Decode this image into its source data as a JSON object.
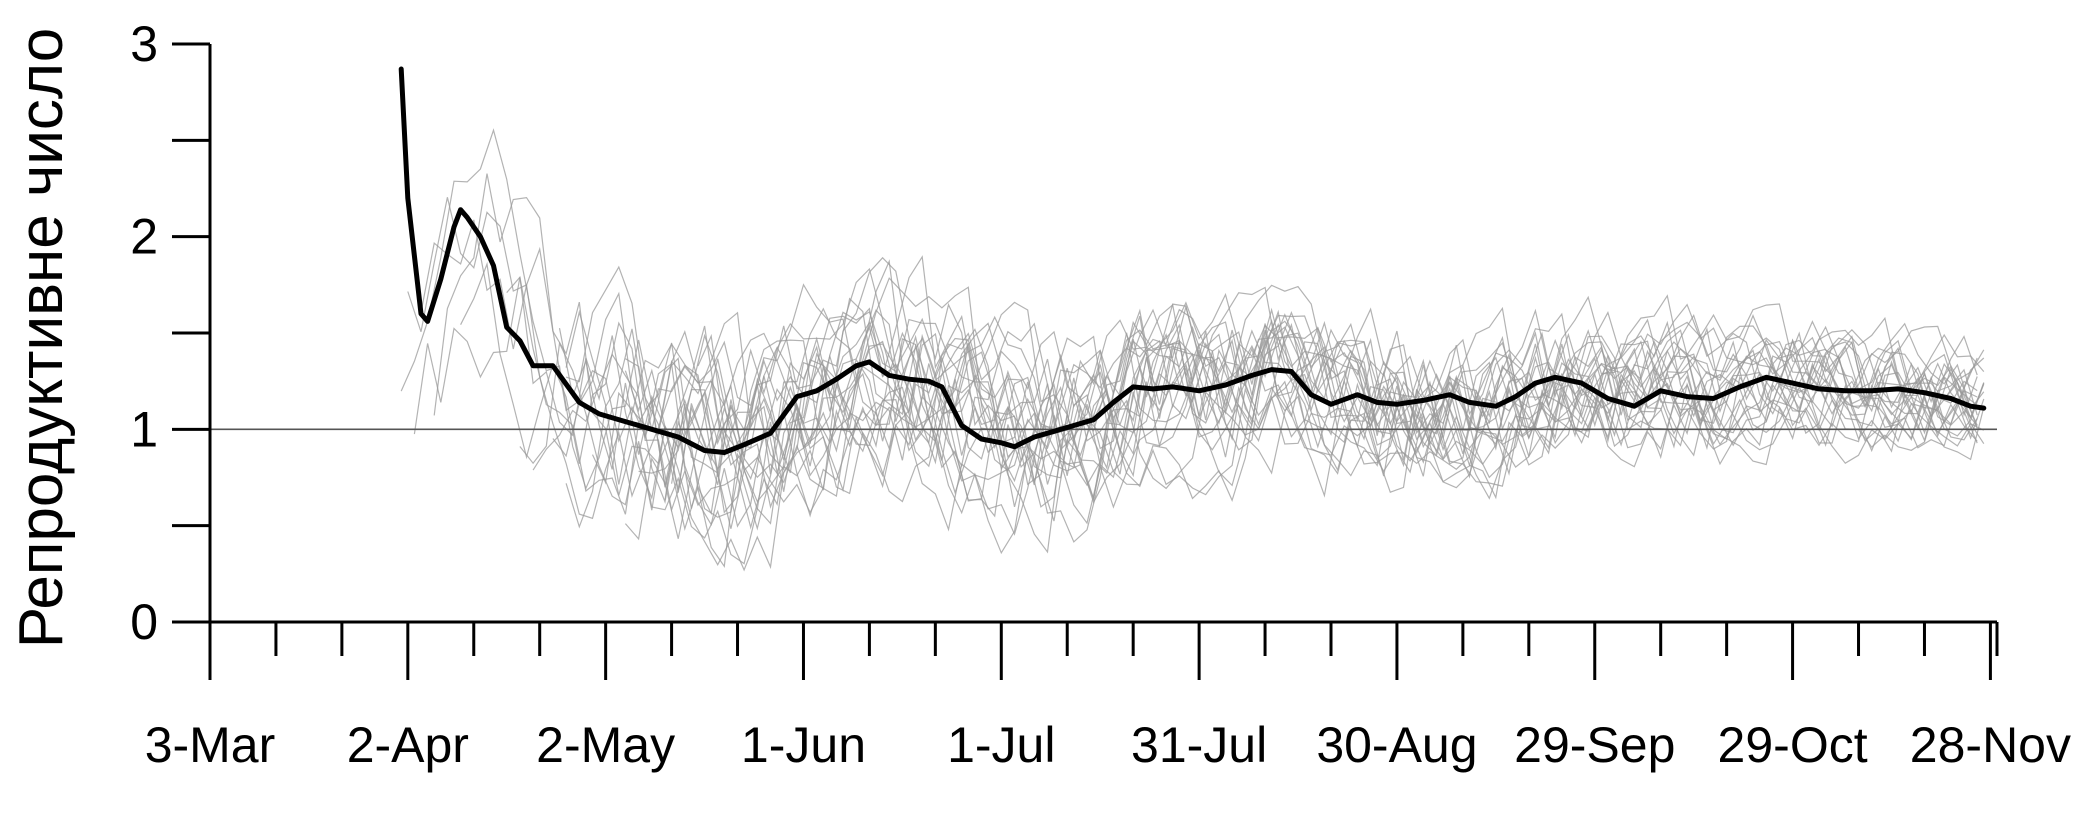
{
  "chart_data": {
    "type": "line",
    "title": "",
    "ylabel": "Репродуктивне число",
    "xlabel": "",
    "ylim": [
      0,
      3
    ],
    "y_ticks": [
      "0",
      "1",
      "2",
      "3"
    ],
    "x_ticks": [
      "3-Mar",
      "2-Apr",
      "2-May",
      "1-Jun",
      "1-Jul",
      "31-Jul",
      "30-Aug",
      "29-Sep",
      "29-Oct",
      "28-Nov"
    ],
    "x_tick_days": [
      0,
      30,
      60,
      90,
      120,
      150,
      180,
      210,
      240,
      270
    ],
    "x_range_days": [
      0,
      271
    ],
    "reference_line": 1,
    "main_series": {
      "color": "#000000",
      "days": [
        29,
        30,
        32,
        33,
        35,
        37,
        38,
        39,
        41,
        43,
        45,
        47,
        49,
        52,
        56,
        59,
        63,
        67,
        71,
        75,
        78,
        81,
        85,
        89,
        92,
        95,
        98,
        100,
        103,
        106,
        109,
        111,
        114,
        117,
        120,
        122,
        125,
        128,
        131,
        134,
        137,
        140,
        143,
        146,
        150,
        154,
        158,
        161,
        164,
        167,
        170,
        174,
        177,
        180,
        184,
        188,
        191,
        195,
        198,
        201,
        204,
        208,
        212,
        216,
        220,
        224,
        228,
        232,
        236,
        240,
        244,
        248,
        252,
        256,
        260,
        264,
        267,
        269
      ],
      "values": [
        2.87,
        2.2,
        1.6,
        1.56,
        1.78,
        2.05,
        2.14,
        2.1,
        2.0,
        1.85,
        1.53,
        1.46,
        1.33,
        1.33,
        1.14,
        1.08,
        1.04,
        1.0,
        0.96,
        0.89,
        0.88,
        0.92,
        0.98,
        1.17,
        1.2,
        1.26,
        1.33,
        1.35,
        1.28,
        1.26,
        1.25,
        1.22,
        1.02,
        0.95,
        0.93,
        0.91,
        0.96,
        0.99,
        1.02,
        1.05,
        1.14,
        1.22,
        1.21,
        1.22,
        1.2,
        1.23,
        1.28,
        1.31,
        1.3,
        1.18,
        1.13,
        1.18,
        1.14,
        1.13,
        1.15,
        1.18,
        1.14,
        1.12,
        1.17,
        1.24,
        1.27,
        1.24,
        1.16,
        1.12,
        1.2,
        1.17,
        1.16,
        1.22,
        1.27,
        1.24,
        1.21,
        1.2,
        1.2,
        1.21,
        1.19,
        1.16,
        1.12,
        1.11
      ]
    },
    "background_series": {
      "color": "#9a9a9a",
      "count": 24,
      "x_start_day": 29,
      "x_end_day": 269,
      "typical_range": [
        0,
        2.9
      ]
    }
  }
}
